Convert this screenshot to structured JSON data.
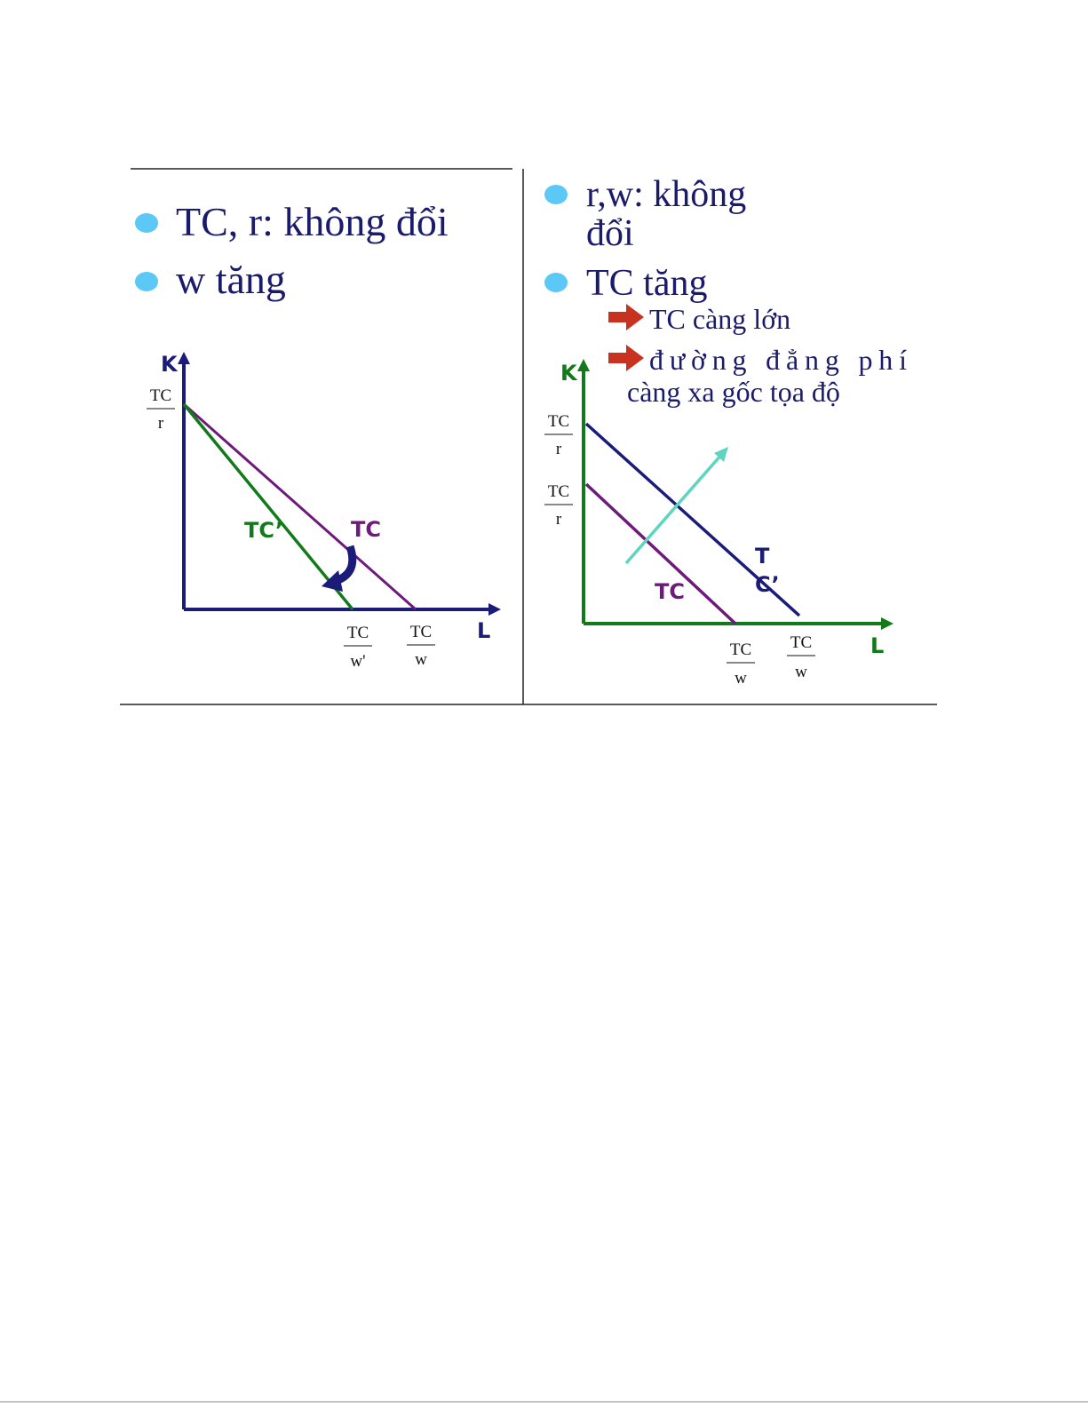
{
  "left_panel": {
    "bullets": [
      "TC, r: không đổi",
      "w tăng"
    ],
    "diagram": {
      "y_axis": "K",
      "x_axis": "L",
      "y_intercept": {
        "numerator": "TC",
        "denominator": "r"
      },
      "line_labels": [
        "TC’",
        "TC"
      ],
      "x_intercepts": [
        {
          "numerator": "TC",
          "denominator": "w'"
        },
        {
          "numerator": "TC",
          "denominator": "w"
        }
      ]
    }
  },
  "right_panel": {
    "bullets": [
      {
        "lines": [
          "r,w: không",
          "đổi"
        ]
      },
      {
        "lines": [
          "TC tăng"
        ]
      }
    ],
    "sub_points": [
      {
        "lines": [
          "TC càng lớn"
        ]
      },
      {
        "lines": [
          "đường đẳng phí",
          "càng xa gốc tọa độ"
        ]
      }
    ],
    "diagram": {
      "y_axis": "K",
      "x_axis": "L",
      "y_intercepts": [
        {
          "numerator": "TC",
          "denominator": "r"
        },
        {
          "numerator": "TC",
          "denominator": "r"
        }
      ],
      "line_labels": [
        {
          "lines": [
            "T",
            "C’"
          ]
        },
        {
          "lines": [
            "TC"
          ]
        }
      ],
      "x_intercepts": [
        {
          "numerator": "TC",
          "denominator": "w"
        },
        {
          "numerator": "TC",
          "denominator": "w"
        }
      ]
    }
  }
}
